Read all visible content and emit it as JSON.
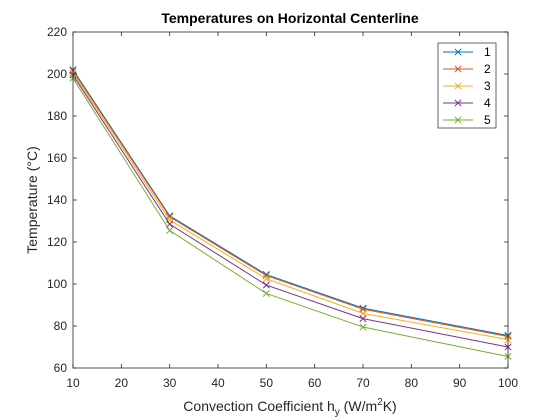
{
  "chart_data": {
    "type": "line",
    "title": "Temperatures on Horizontal Centerline",
    "xlabel": {
      "prefix": "Convection Coefficient h",
      "subscript": "y",
      "middle": " (W/m",
      "superscript": "2",
      "suffix": "K)"
    },
    "ylabel": "Temperature (°C)",
    "x": [
      10,
      30,
      50,
      70,
      100
    ],
    "xlim": [
      10,
      100
    ],
    "ylim": [
      60,
      220
    ],
    "xticks": [
      "10",
      "20",
      "30",
      "40",
      "50",
      "60",
      "70",
      "80",
      "90",
      "100"
    ],
    "yticks": [
      "60",
      "80",
      "100",
      "120",
      "140",
      "160",
      "180",
      "200",
      "220"
    ],
    "grid": false,
    "legend_position": "top-right",
    "marker": "x",
    "series": [
      {
        "name": "1",
        "color": "#0072BD",
        "values": [
          202.0,
          132.5,
          104.5,
          88.5,
          75.5
        ]
      },
      {
        "name": "2",
        "color": "#D95319",
        "values": [
          201.5,
          132.0,
          104.0,
          88.0,
          75.0
        ]
      },
      {
        "name": "3",
        "color": "#EDB120",
        "values": [
          200.5,
          130.5,
          102.5,
          86.0,
          73.5
        ]
      },
      {
        "name": "4",
        "color": "#7E2F8E",
        "values": [
          199.5,
          128.5,
          99.5,
          83.5,
          70.0
        ]
      },
      {
        "name": "5",
        "color": "#77AC30",
        "values": [
          198.0,
          125.5,
          95.5,
          79.5,
          65.5
        ]
      }
    ]
  }
}
